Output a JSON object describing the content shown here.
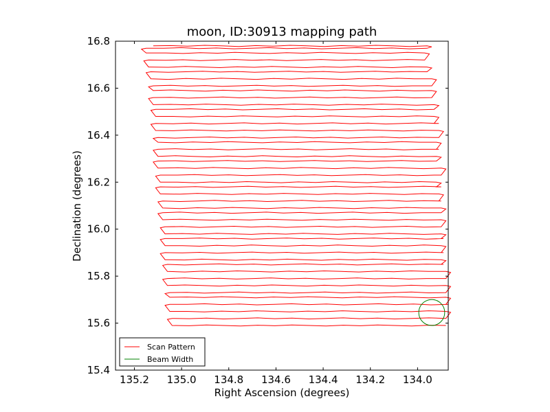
{
  "chart_data": {
    "type": "line",
    "title": "moon, ID:30913 mapping path",
    "xlabel": "Right Ascension (degrees)",
    "ylabel": "Declination (degrees)",
    "xlim": [
      135.28,
      133.87
    ],
    "ylim": [
      15.4,
      16.8
    ],
    "x_ticks": [
      135.2,
      135.0,
      134.8,
      134.6,
      134.4,
      134.2,
      134.0
    ],
    "x_tick_labels": [
      "135.2",
      "135.0",
      "134.8",
      "134.6",
      "134.4",
      "134.2",
      "134.0"
    ],
    "y_ticks": [
      15.4,
      15.6,
      15.8,
      16.0,
      16.2,
      16.4,
      16.6,
      16.8
    ],
    "y_tick_labels": [
      "15.4",
      "15.6",
      "15.8",
      "16.0",
      "16.2",
      "16.4",
      "16.6",
      "16.8"
    ],
    "grid": false,
    "legend": "lower-left",
    "series": [
      {
        "name": "Scan Pattern",
        "color": "#ff0000",
        "kind": "boustrophedon-scan",
        "dec_levels": [
          16.78,
          16.77,
          16.75,
          16.72,
          16.69,
          16.67,
          16.64,
          16.61,
          16.59,
          16.56,
          16.53,
          16.51,
          16.48,
          16.45,
          16.42,
          16.39,
          16.37,
          16.34,
          16.31,
          16.29,
          16.26,
          16.23,
          16.2,
          16.18,
          16.15,
          16.12,
          16.09,
          16.07,
          16.04,
          16.01,
          15.98,
          15.96,
          15.93,
          15.9,
          15.87,
          15.85,
          15.82,
          15.79,
          15.76,
          15.73,
          15.71,
          15.68,
          15.65,
          15.62,
          15.59
        ],
        "ra_left_ends": [
          135.12,
          135.15,
          135.14,
          135.14,
          135.13,
          135.13,
          135.13,
          135.12,
          135.12,
          135.12,
          135.12,
          135.11,
          135.11,
          135.11,
          135.11,
          135.1,
          135.1,
          135.1,
          135.1,
          135.1,
          135.09,
          135.09,
          135.09,
          135.09,
          135.08,
          135.08,
          135.08,
          135.08,
          135.08,
          135.07,
          135.07,
          135.07,
          135.07,
          135.07,
          135.06,
          135.06,
          135.06,
          135.06,
          135.06,
          135.05,
          135.05,
          135.05,
          135.05,
          135.04,
          135.04
        ],
        "ra_right_ends": [
          133.96,
          133.96,
          133.97,
          133.97,
          133.96,
          133.96,
          133.94,
          133.95,
          133.94,
          133.94,
          133.93,
          133.93,
          133.93,
          133.91,
          133.91,
          133.93,
          133.92,
          133.91,
          133.92,
          133.92,
          133.9,
          133.93,
          133.92,
          133.9,
          133.91,
          133.9,
          133.9,
          133.91,
          133.9,
          133.9,
          133.9,
          133.89,
          133.9,
          133.89,
          133.9,
          133.89,
          133.88,
          133.89,
          133.88,
          133.88,
          133.88,
          133.87,
          133.88,
          133.88,
          133.88
        ]
      },
      {
        "name": "Beam Width",
        "color": "#008000",
        "kind": "circle",
        "center_ra": 133.94,
        "center_dec": 15.645,
        "radius_deg": 0.055
      }
    ]
  }
}
